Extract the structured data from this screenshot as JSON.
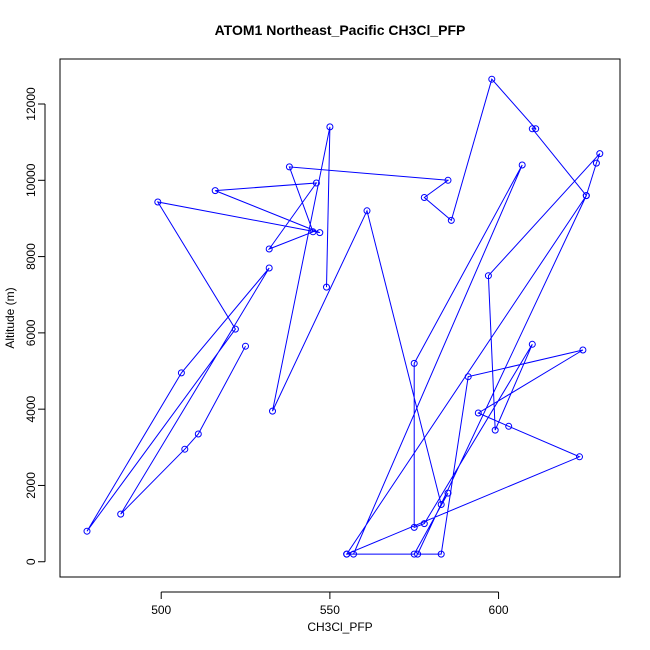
{
  "chart_data": {
    "type": "line",
    "title": "ATOM1 Northeast_Pacific CH3Cl_PFP",
    "xlabel": "CH3Cl_PFP",
    "ylabel": "Altitude (m)",
    "xlim": [
      470,
      636
    ],
    "ylim": [
      -400,
      13180
    ],
    "x_ticks": [
      500,
      550,
      600
    ],
    "y_ticks": [
      0,
      2000,
      4000,
      6000,
      8000,
      10000,
      12000
    ],
    "line_color": "#0000ff",
    "marker": "open-circle",
    "grid": false,
    "series": [
      {
        "points": [
          [
            525,
            5650
          ],
          [
            511,
            3350
          ],
          [
            507,
            2950
          ],
          [
            488,
            1250
          ],
          [
            532,
            7700
          ],
          [
            506,
            4950
          ],
          [
            478,
            800
          ],
          [
            522,
            6100
          ],
          [
            499,
            9430
          ],
          [
            547,
            8630
          ],
          [
            516,
            9730
          ],
          [
            546,
            9930
          ],
          [
            532,
            8200
          ],
          [
            545,
            8650
          ],
          [
            538,
            10350
          ],
          [
            585,
            10000
          ],
          [
            578,
            9550
          ],
          [
            586,
            8950
          ],
          [
            598,
            12650
          ],
          [
            611,
            11350
          ],
          [
            610,
            11350
          ],
          [
            626,
            9600
          ],
          [
            629,
            10450
          ],
          [
            630,
            10700
          ],
          [
            597,
            7500
          ],
          [
            599,
            3450
          ],
          [
            610,
            5700
          ],
          [
            578,
            1000
          ],
          [
            575,
            900
          ],
          [
            575,
            5200
          ],
          [
            607,
            10400
          ],
          [
            557,
            200
          ],
          [
            555,
            200
          ],
          [
            626,
            9600
          ],
          [
            576,
            200
          ],
          [
            583,
            200
          ],
          [
            591,
            4850
          ],
          [
            625,
            5550
          ],
          [
            594,
            3900
          ],
          [
            603,
            3550
          ],
          [
            624,
            2750
          ],
          [
            555,
            200
          ],
          [
            575,
            200
          ],
          [
            585,
            1800
          ],
          [
            583,
            1500
          ],
          [
            561,
            9200
          ],
          [
            533,
            3950
          ],
          [
            550,
            11400
          ],
          [
            549,
            7200
          ]
        ]
      }
    ]
  }
}
